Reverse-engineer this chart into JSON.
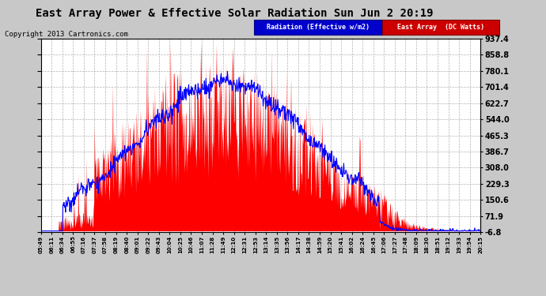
{
  "title": "East Array Power & Effective Solar Radiation Sun Jun 2 20:19",
  "copyright": "Copyright 2013 Cartronics.com",
  "legend_radiation": "Radiation (Effective w/m2)",
  "legend_east": "East Array  (DC Watts)",
  "y_min": -6.8,
  "y_max": 937.4,
  "y_ticks": [
    -6.8,
    71.9,
    150.6,
    229.3,
    308.0,
    386.7,
    465.3,
    544.0,
    622.7,
    701.4,
    780.1,
    858.8,
    937.4
  ],
  "plot_bg": "#ffffff",
  "figure_bg": "#c8c8c8",
  "grid_color": "#aaaaaa",
  "radiation_color": "#0000ff",
  "east_array_color": "#ff0000",
  "x_labels": [
    "05:49",
    "06:11",
    "06:34",
    "06:55",
    "07:16",
    "07:37",
    "07:58",
    "08:19",
    "08:40",
    "09:01",
    "09:22",
    "09:43",
    "10:04",
    "10:25",
    "10:46",
    "11:07",
    "11:28",
    "11:49",
    "12:10",
    "12:31",
    "12:53",
    "13:14",
    "13:35",
    "13:56",
    "14:17",
    "14:38",
    "14:59",
    "15:20",
    "15:41",
    "16:02",
    "16:24",
    "16:45",
    "17:06",
    "17:27",
    "17:48",
    "18:09",
    "18:30",
    "18:51",
    "19:12",
    "19:33",
    "19:54",
    "20:15"
  ]
}
